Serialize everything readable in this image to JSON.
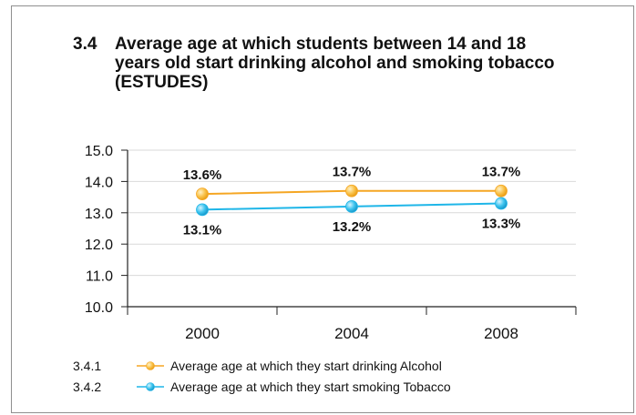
{
  "figure": {
    "number": "3.4",
    "title": "Average age at which students between 14 and 18 years old start drinking alcohol and smoking tobacco (ESTUDES)"
  },
  "chart_data": {
    "type": "line",
    "title": "Average age at which students between 14 and 18 years old start drinking alcohol and smoking tobacco (ESTUDES)",
    "xlabel": "",
    "ylabel": "",
    "categories": [
      "2000",
      "2004",
      "2008"
    ],
    "ylim": [
      10.0,
      15.0
    ],
    "yticks": [
      "15.0",
      "14.0",
      "13.0",
      "12.0",
      "11.0",
      "10.0"
    ],
    "grid": true,
    "legend_position": "bottom-left",
    "series": [
      {
        "id": "3.4.1",
        "name": "Average age at which they start drinking Alcohol",
        "values": [
          13.6,
          13.7,
          13.7
        ],
        "labels": [
          "13.6%",
          "13.7%",
          "13.7%"
        ],
        "label_position": "above",
        "color": "#f5a623",
        "marker_color": "#f8c04a"
      },
      {
        "id": "3.4.2",
        "name": "Average age at which they start smoking Tobacco",
        "values": [
          13.1,
          13.2,
          13.3
        ],
        "labels": [
          "13.1%",
          "13.2%",
          "13.3%"
        ],
        "label_position": "below",
        "color": "#1fb6e8",
        "marker_color": "#3cc3ee"
      }
    ]
  }
}
